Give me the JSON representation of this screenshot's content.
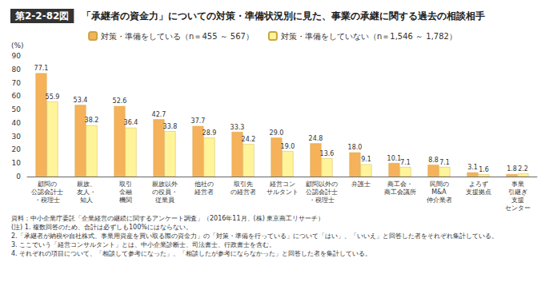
{
  "chart_data": {
    "type": "bar",
    "title": "第2-2-82図　「承継者の資金力」についての対策・準備状況別に見た、事業の承継に関する過去の相談相手",
    "y_label": "(%)",
    "categories": [
      "顧問の\n公認会計士\n・税理士",
      "親族、\n友人・\n知人",
      "取引\n金融\n機関",
      "親族以外\nの役員・\n従業員",
      "他社の\n経営者",
      "取引先\nの経営者",
      "経営コン\nサルタント",
      "顧問以外の\n公認会計士\n・税理士",
      "弁護士",
      "商工会・\n商工会議所",
      "民間の\nM&A\n仲介業者",
      "よろず\n支援拠点",
      "事業\n引継ぎ\n支援\nセンター"
    ],
    "series": [
      {
        "name": "対策・準備をしている（n＝455 ～ 567）",
        "color": "#f5b25a",
        "values": [
          77.1,
          53.4,
          52.6,
          42.7,
          37.7,
          33.3,
          29.0,
          24.8,
          18.0,
          10.1,
          8.8,
          3.1,
          1.8
        ],
        "value_labels": [
          "77.1",
          "53.4",
          "52.6",
          "42.7",
          "37.7",
          "33.3",
          "29.0",
          "24.8",
          "18.0",
          "10.1",
          "8.8",
          "3.1",
          "1.8"
        ]
      },
      {
        "name": "対策・準備をしていない（n＝1,546 ～ 1,782）",
        "color": "#fff49a",
        "values": [
          55.9,
          38.2,
          36.4,
          33.8,
          28.9,
          24.2,
          19.0,
          13.6,
          9.1,
          7.1,
          7.1,
          1.6,
          2.2
        ],
        "value_labels": [
          "55.9",
          "38.2",
          "36.4",
          "33.8",
          "28.9",
          "24.2",
          "19.0",
          "13.6",
          "9.1",
          "7.1",
          "7.1",
          "1.6",
          "2.2"
        ]
      }
    ],
    "ylim": [
      0,
      90
    ],
    "yticks": [
      0,
      10,
      20,
      30,
      40,
      50,
      60,
      70,
      80,
      90
    ],
    "grid": false,
    "legend": "top",
    "data_labels": true,
    "notes": [
      "資料：中小企業庁委託「企業経営の継続に関するアンケート調査」（2016年11月、(株) 東京商工リサーチ）",
      "(注) 1. 複数回答のため、合計は必ずしも100%にはならない。",
      "2.「承継者が納税や自社株式、事業用資産を買い取る際の資金力」の「対策・準備を行っている」について「はい」、「いいえ」と回答した者をそれぞれ集計している。",
      "3. ここでいう「経営コンサルタント」とは、中小企業診断士、司法書士、行政書士を含む。",
      "4. それぞれの項目について、「相談して参考になった」、「相談したが参考にならなかった」と回答した者を集計している。"
    ]
  }
}
